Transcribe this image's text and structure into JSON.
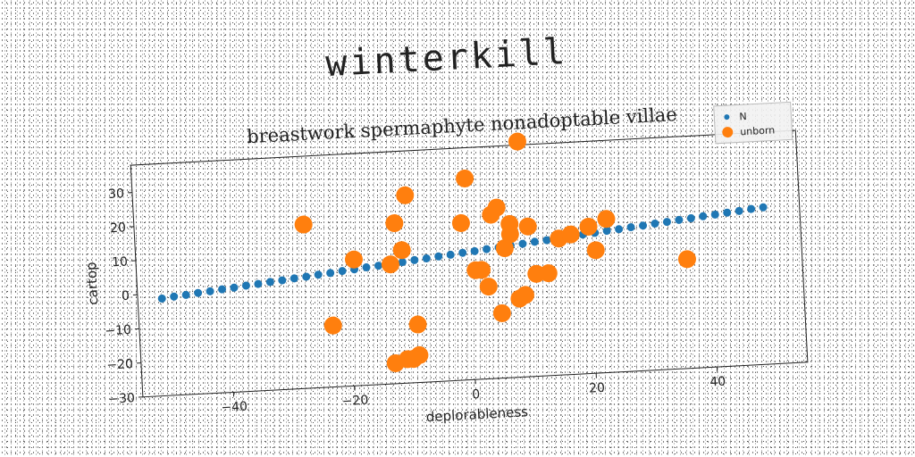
{
  "page_title": "winterkill",
  "chart_data": {
    "type": "scatter",
    "title": "breastwork spermaphyte nonadoptable villae",
    "xlabel": "deplorableness",
    "ylabel": "cartop",
    "xlim": [
      -55,
      55
    ],
    "ylim": [
      -30,
      38
    ],
    "xticks": [
      -40,
      -20,
      0,
      20,
      40
    ],
    "yticks": [
      -30,
      -20,
      -10,
      0,
      10,
      20,
      30
    ],
    "grid": false,
    "legend_position": "top-right",
    "series": [
      {
        "name": "N",
        "color": "#1f77b4",
        "marker_size": "small",
        "x": [
          -51,
          -49,
          -47,
          -45,
          -43,
          -41,
          -39,
          -37,
          -35,
          -33,
          -31,
          -29,
          -27,
          -25,
          -23,
          -21,
          -19,
          -17,
          -15,
          -13,
          -11,
          -9,
          -7,
          -5,
          -3,
          -1,
          1,
          3,
          5,
          7,
          9,
          11,
          13,
          15,
          17,
          19,
          21,
          23,
          25,
          27,
          29,
          31,
          33,
          35,
          37,
          39,
          41,
          43,
          45,
          47,
          49
        ],
        "y": [
          -1.5,
          -1.1,
          -0.8,
          -0.4,
          -0.1,
          0.3,
          0.6,
          1.0,
          1.3,
          1.7,
          2.0,
          2.4,
          2.7,
          3.1,
          3.4,
          3.8,
          4.1,
          4.5,
          4.8,
          5.2,
          5.5,
          5.9,
          6.2,
          6.6,
          6.9,
          7.3,
          7.6,
          8.0,
          8.3,
          8.7,
          9.0,
          9.4,
          9.7,
          10.1,
          10.4,
          10.8,
          11.1,
          11.5,
          11.8,
          12.2,
          12.5,
          12.9,
          13.2,
          13.6,
          13.9,
          14.3,
          14.6,
          15.0,
          15.3,
          15.7,
          16.0
        ]
      },
      {
        "name": "unborn",
        "color": "#ff7f0e",
        "marker_size": "large",
        "x": [
          -27,
          -23,
          -19,
          -13,
          -11,
          -12,
          -10,
          -9,
          -9,
          -11,
          -10,
          -13,
          -10,
          0,
          -1,
          1,
          2,
          3,
          4,
          5,
          5,
          6,
          7,
          7,
          8,
          9,
          9,
          10,
          11,
          13,
          15,
          17,
          20,
          21,
          23,
          36
        ],
        "y": [
          18,
          -12,
          7,
          5,
          9,
          17,
          25,
          -13,
          -22,
          -23,
          -23,
          -24,
          -23,
          29,
          16,
          2,
          2,
          -3,
          18,
          20,
          -11,
          8,
          12,
          15,
          -7,
          -6,
          39,
          14,
          0,
          0,
          10,
          11,
          13,
          6,
          15,
          2
        ]
      }
    ]
  }
}
